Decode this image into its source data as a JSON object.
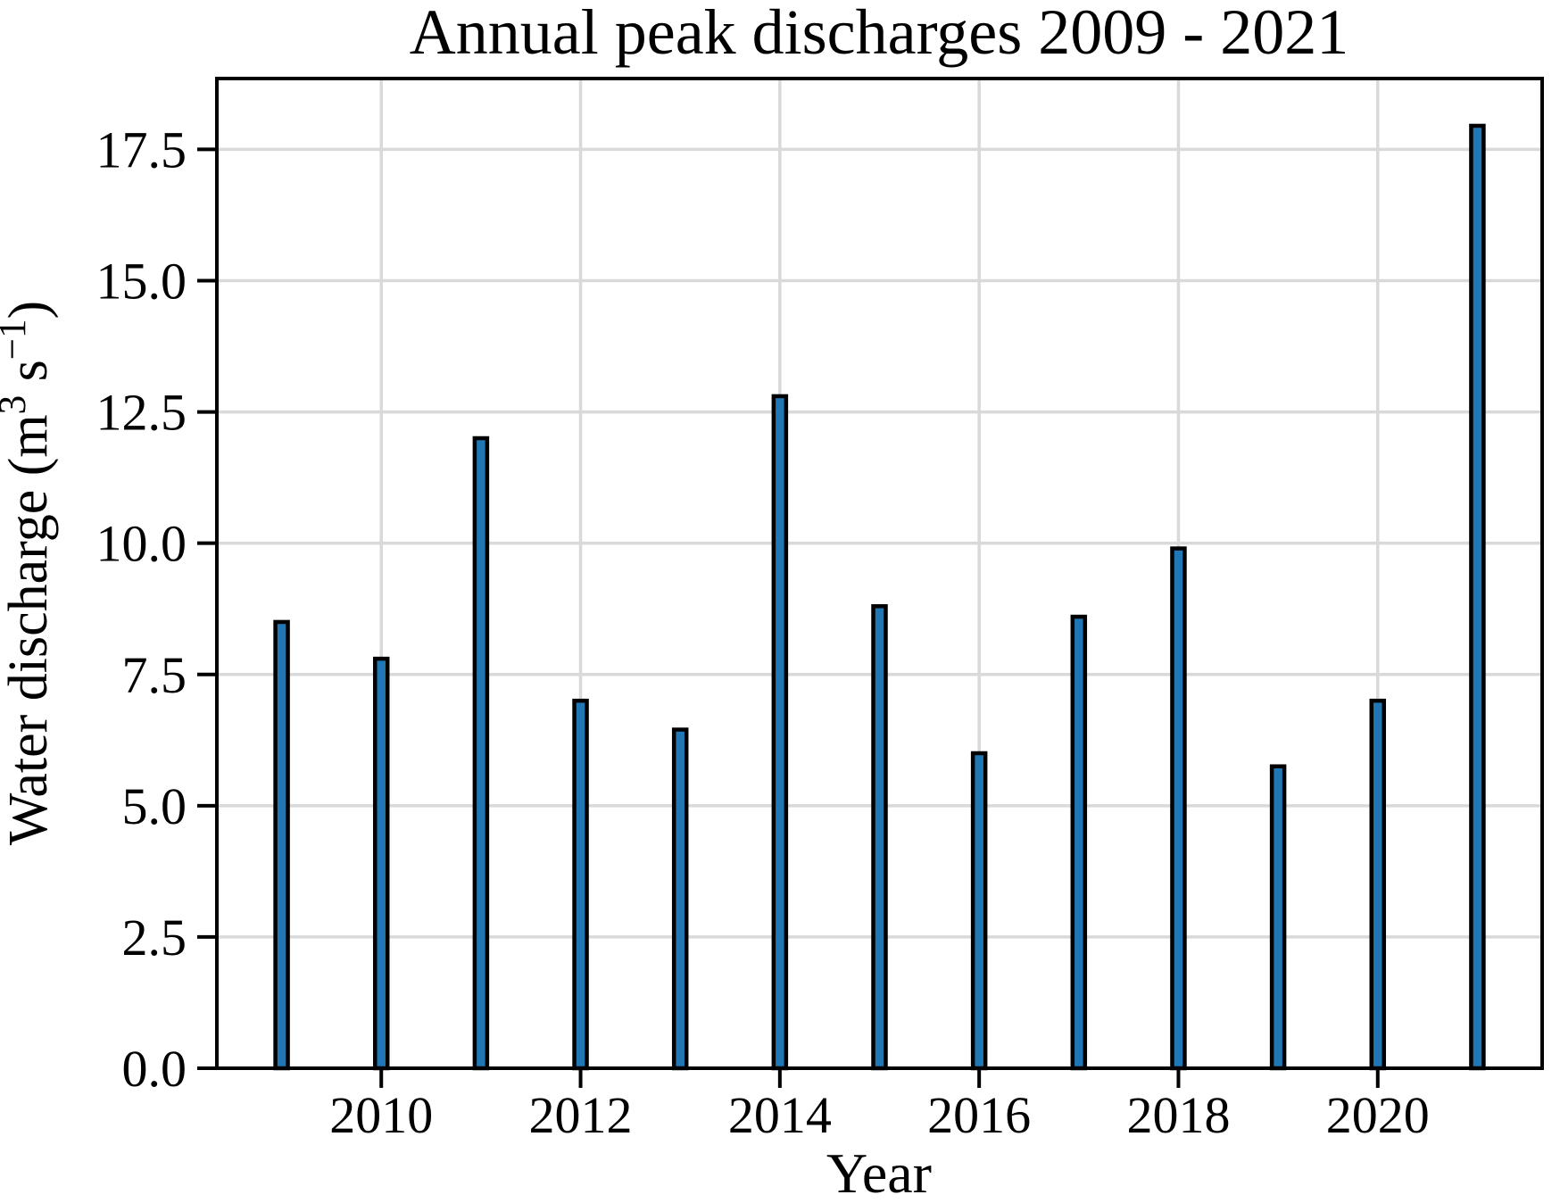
{
  "chart_data": {
    "type": "bar",
    "title": "Annual peak discharges 2009 - 2021",
    "xlabel": "Year",
    "ylabel": "Water discharge (m³ s⁻¹)",
    "ylabel_parts": [
      {
        "t": "Water discharge (m",
        "sup": false
      },
      {
        "t": "3",
        "sup": true
      },
      {
        "t": " s",
        "sup": false
      },
      {
        "t": "−1",
        "sup": true
      },
      {
        "t": ")",
        "sup": false
      }
    ],
    "categories": [
      2009,
      2010,
      2011,
      2012,
      2013,
      2014,
      2015,
      2016,
      2017,
      2018,
      2019,
      2020,
      2021
    ],
    "values": [
      8.5,
      7.8,
      12.0,
      7.0,
      6.45,
      12.8,
      8.8,
      6.0,
      8.6,
      9.9,
      5.75,
      7.0,
      17.95
    ],
    "yticks": [
      0.0,
      2.5,
      5.0,
      7.5,
      10.0,
      12.5,
      15.0,
      17.5
    ],
    "ytick_labels": [
      "0.0",
      "2.5",
      "5.0",
      "7.5",
      "10.0",
      "12.5",
      "15.0",
      "17.5"
    ],
    "xtick_values": [
      2010,
      2012,
      2014,
      2016,
      2018,
      2020
    ],
    "xtick_labels": [
      "2010",
      "2012",
      "2014",
      "2016",
      "2018",
      "2020"
    ],
    "xlim": [
      2008.35,
      2021.65
    ],
    "ylim": [
      0,
      18.85
    ],
    "grid": true,
    "legend": null,
    "colors": {
      "bar_fill": "#2077b4",
      "bar_edge": "#000000",
      "grid_line": "#d9d9d9",
      "axis": "#000000",
      "background": "#ffffff"
    }
  }
}
